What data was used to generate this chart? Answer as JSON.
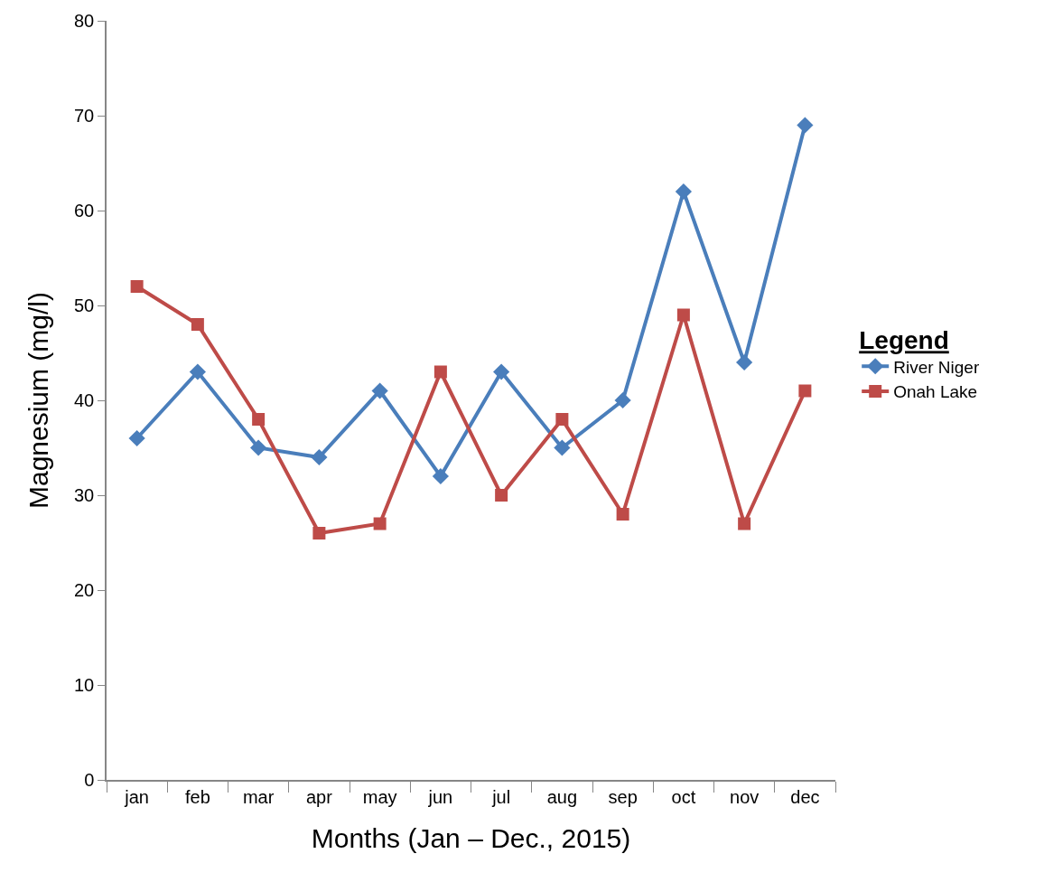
{
  "chart_data": {
    "type": "line",
    "xlabel": "Months (Jan – Dec., 2015)",
    "ylabel": "Magnesium (mg/l)",
    "legend_title": "Legend",
    "categories": [
      "jan",
      "feb",
      "mar",
      "apr",
      "may",
      "jun",
      "jul",
      "aug",
      "sep",
      "oct",
      "nov",
      "dec"
    ],
    "series": [
      {
        "name": "River Niger",
        "color": "#4a7ebb",
        "marker": "diamond",
        "values": [
          36,
          43,
          35,
          34,
          41,
          32,
          43,
          35,
          40,
          62,
          44,
          69
        ]
      },
      {
        "name": "Onah Lake",
        "color": "#be4b48",
        "marker": "square",
        "values": [
          52,
          48,
          38,
          26,
          27,
          43,
          30,
          38,
          28,
          49,
          27,
          41
        ]
      }
    ],
    "ylim": [
      0,
      80
    ],
    "yticks": [
      0,
      10,
      20,
      30,
      40,
      50,
      60,
      70,
      80
    ],
    "grid": false,
    "legend": "right",
    "line_style": "solid"
  }
}
